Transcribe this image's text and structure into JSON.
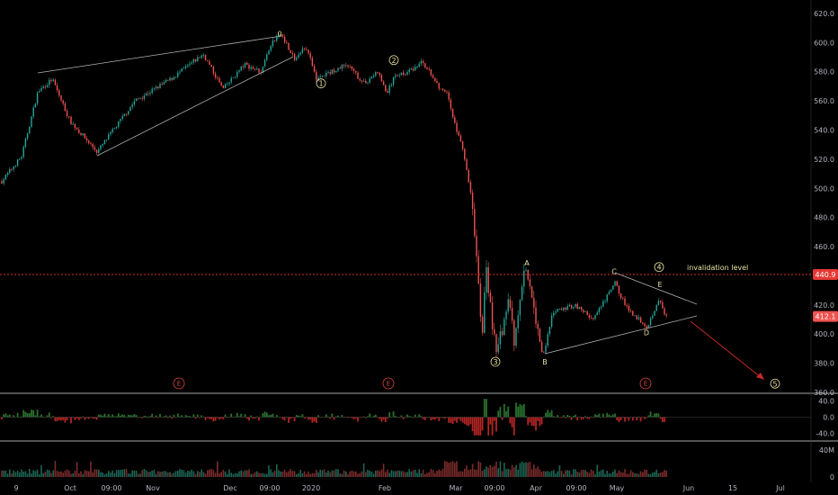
{
  "colors": {
    "background": "#000000",
    "up": "#26a69a",
    "down": "#ef5350",
    "axis_text": "#b2b5be",
    "wave_label": "#e8e0a0",
    "trendline": "#b0b0b0",
    "invalidation": "#d03030",
    "last_price_badge": "#ef5350",
    "invalidation_badge": "#e53935",
    "projection_arrow": "#c62828"
  },
  "chart_data": {
    "type": "candlestick",
    "price_axis": {
      "ticks": [
        "620.0",
        "600.0",
        "580.0",
        "560.0",
        "540.0",
        "520.0",
        "500.0",
        "480.0",
        "460.0",
        "440.0",
        "420.0",
        "400.0",
        "380.0",
        "360.0"
      ],
      "range": [
        360,
        628
      ]
    },
    "time_axis": {
      "ticks": [
        "9",
        "Oct",
        "09:00",
        "Nov",
        "Dec",
        "09:00",
        "2020",
        "Feb",
        "Mar",
        "09:00",
        "Apr",
        "09:00",
        "May",
        "Jun",
        "15",
        "Jul"
      ]
    },
    "last_price": {
      "value": 412.1,
      "label": "412.1"
    },
    "invalidation": {
      "value": 440.9,
      "label": "440.9",
      "text": "invalidation level"
    },
    "key_prices": [
      {
        "price": 505
      },
      {
        "price": 522
      },
      {
        "price": 566
      },
      {
        "price": 575
      },
      {
        "price": 546
      },
      {
        "price": 525
      },
      {
        "price": 560
      },
      {
        "price": 575
      },
      {
        "price": 592
      },
      {
        "price": 568
      },
      {
        "price": 585
      },
      {
        "price": 580
      },
      {
        "price": 600
      },
      {
        "price": 606
      },
      {
        "price": 588
      },
      {
        "price": 598
      },
      {
        "price": 575
      },
      {
        "price": 585
      },
      {
        "price": 572
      },
      {
        "price": 580
      },
      {
        "price": 565
      },
      {
        "price": 578
      },
      {
        "price": 580
      },
      {
        "price": 587
      },
      {
        "price": 570
      },
      {
        "price": 565
      },
      {
        "price": 545
      },
      {
        "price": 530
      },
      {
        "price": 510
      },
      {
        "price": 487
      },
      {
        "price": 452
      },
      {
        "price": 395
      },
      {
        "price": 447
      },
      {
        "price": 385
      },
      {
        "price": 425
      },
      {
        "price": 392
      },
      {
        "price": 448
      },
      {
        "price": 420
      },
      {
        "price": 385
      },
      {
        "price": 415
      },
      {
        "price": 420
      },
      {
        "price": 410
      },
      {
        "price": 435
      },
      {
        "price": 418
      },
      {
        "price": 405
      },
      {
        "price": 425
      },
      {
        "price": 414
      },
      {
        "price": 412
      }
    ],
    "wave_labels": [
      {
        "label": "0",
        "price": 606
      },
      {
        "label": "1",
        "price": 572
      },
      {
        "label": "2",
        "price": 588
      },
      {
        "label": "3",
        "price": 381
      },
      {
        "label": "A",
        "price": 449
      },
      {
        "label": "B",
        "price": 381
      },
      {
        "label": "C",
        "price": 443
      },
      {
        "label": "4",
        "price": 446
      },
      {
        "label": "E",
        "price": 434
      },
      {
        "label": "D",
        "price": 401
      },
      {
        "label": "5",
        "price": 366
      }
    ],
    "earnings_markers": [
      "E",
      "E",
      "E"
    ],
    "oscillator": {
      "ticks": [
        "40.0",
        "0.0",
        "-40.0"
      ],
      "range": [
        -52,
        52
      ]
    },
    "volume": {
      "ticks": [
        "40M",
        "0"
      ],
      "max": 48
    }
  }
}
